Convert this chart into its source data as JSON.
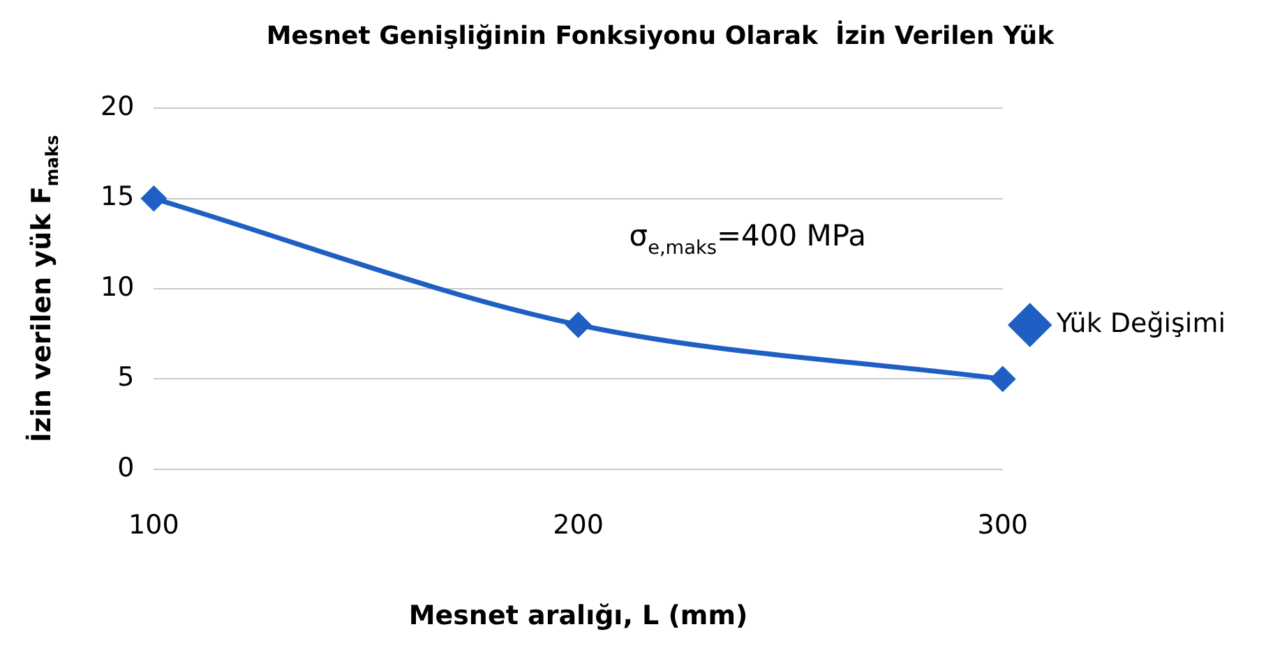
{
  "chart_data": {
    "type": "line",
    "title": "Mesnet Genişliğinin Fonksiyonu Olarak  İzin Verilen Yük",
    "xlabel": "Mesnet aralığı, L (mm)",
    "ylabel": "İzin verilen yük F$_{maks}$",
    "x": [
      100,
      200,
      300
    ],
    "series": [
      {
        "name": "Yük Değişimi",
        "color": "#1f5fc4",
        "values": [
          15,
          8,
          5
        ]
      }
    ],
    "xlim": [
      100,
      300
    ],
    "xticks": [
      100,
      200,
      300
    ],
    "ylim": [
      0,
      20
    ],
    "yticks": [
      0,
      5,
      10,
      15,
      20
    ],
    "grid": "y",
    "legend": "right",
    "marker": "diamond",
    "line_style": "solid",
    "annotations": [
      "σ$_{e,maks}$=400 MPa"
    ]
  }
}
